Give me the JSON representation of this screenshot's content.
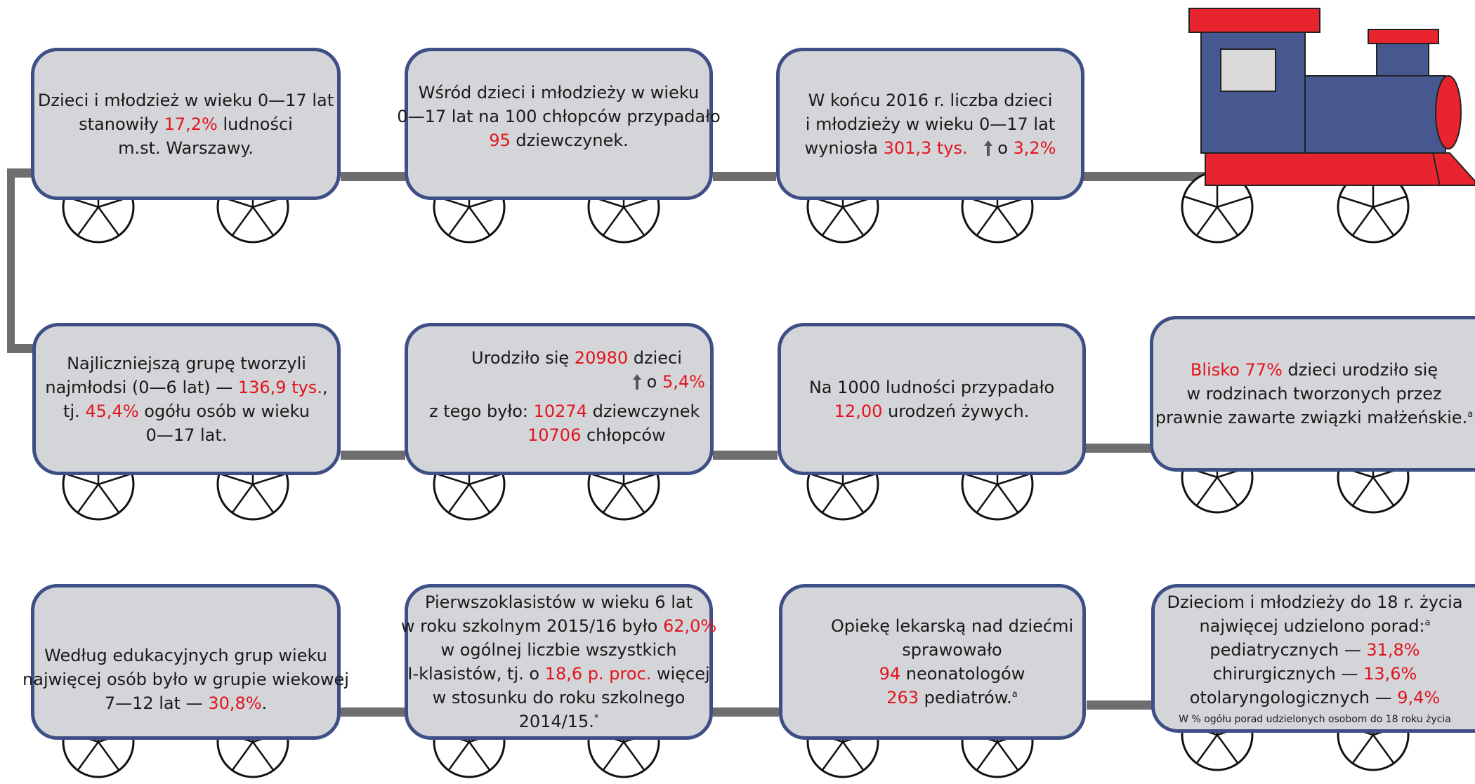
{
  "cars": {
    "c1": {
      "l1": "Dzieci i młodzież w wieku 0—17 lat",
      "l2a": "stanowiły ",
      "l2b": "17,2%",
      "l2c": " ludności",
      "l3": "m.st. Warszawy."
    },
    "c2": {
      "l1": "Wśród dzieci i młodzieży w wieku",
      "l2": "0—17 lat na 100 chłopców przypadało",
      "l3a": "95",
      "l3b": " dziewczynek."
    },
    "c3": {
      "l1": "W końcu 2016 r. liczba dzieci",
      "l2": "i młodzieży w wieku 0—17 lat",
      "l3a": "wyniosła ",
      "l3b": "301,3 tys.",
      "l3c": "o ",
      "l3d": "3,2%"
    },
    "c4": {
      "l1": "Najliczniejszą grupę tworzyli",
      "l2a": "najmłodsi (0—6 lat) — ",
      "l2b": "136,9 tys.",
      "l2c": ",",
      "l3a": "tj. ",
      "l3b": "45,4%",
      "l3c": " ogółu osób w wieku",
      "l4": "0—17 lat."
    },
    "c5": {
      "l1a": "Urodziło się ",
      "l1b": "20980",
      "l1c": " dzieci",
      "l2a": "o ",
      "l2b": "5,4%",
      "l3a": "z tego było: ",
      "l3b": "10274",
      "l3c": " dziewczynek",
      "l4a": "10706",
      "l4b": " chłopców"
    },
    "c6": {
      "l1": "Na 1000 ludności przypadało",
      "l2a": "12,00",
      "l2b": " urodzeń żywych."
    },
    "c7": {
      "l1a": "Blisko 77%",
      "l1b": " dzieci urodziło się",
      "l2": "w rodzinach tworzonych przez",
      "l3": "prawnie zawarte związki małżeńskie.",
      "l3sup": "a"
    },
    "c8": {
      "l1": "Według edukacyjnych grup wieku",
      "l2": "najwięcej osób było w grupie wiekowej",
      "l3a": "7—12 lat — ",
      "l3b": "30,8%",
      "l3c": "."
    },
    "c9": {
      "l1": "Pierwszoklasistów w wieku 6 lat",
      "l2a": "w roku szkolnym 2015/16 było ",
      "l2b": "62,0%",
      "l3": "w ogólnej liczbie wszystkich",
      "l4a": "I-klasistów, tj. o ",
      "l4b": "18,6 p. proc.",
      "l4c": " więcej",
      "l5": "w stosunku do roku szkolnego",
      "l6": "2014/15.",
      "l6sup": "*"
    },
    "c10": {
      "l1": "Opiekę lekarską nad dziećmi",
      "l2": "sprawowało",
      "l3a": "94",
      "l3b": " neonatologów",
      "l4a": "263",
      "l4b": " pediatrów.",
      "l4sup": "a"
    },
    "c11": {
      "l1": "Dzieciom i młodzieży do 18 r. życia",
      "l2": "najwięcej udzielono porad:",
      "l2sup": "a",
      "l3a": "pediatrycznych — ",
      "l3b": "31,8%",
      "l4a": "chirurgicznych — ",
      "l4b": "13,6%",
      "l5a": "otolaryngologicznych — ",
      "l5b": "9,4%",
      "note": "W % ogółu porad udzielonych osobom do 18 roku życia"
    }
  },
  "colors": {
    "car_fill": "#d3d5d8",
    "car_border": "#3e4f86",
    "highlight": "#e3141e",
    "engine_red": "#e8252e",
    "engine_blue": "#46588f",
    "coupler": "#6e6e6e"
  },
  "icons": [
    "kids-icon",
    "baby-icon",
    "pencil-icon",
    "stethoscope-icon",
    "up-arrow-icon",
    "locomotive-icon",
    "wheel-icon"
  ]
}
